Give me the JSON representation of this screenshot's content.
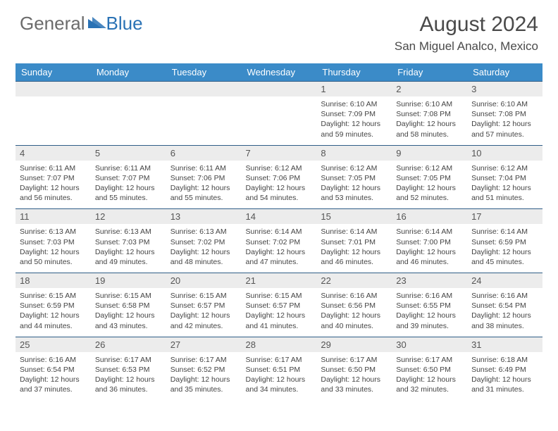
{
  "logo": {
    "part1": "General",
    "part2": "Blue"
  },
  "title": "August 2024",
  "location": "San Miguel Analco, Mexico",
  "colors": {
    "header_bg": "#3b8bc8",
    "header_text": "#ffffff",
    "daynum_bg": "#ececec",
    "row_border": "#2f5d87",
    "logo_gray": "#6b6b6b",
    "logo_blue": "#2a72b5",
    "text": "#444444"
  },
  "day_headers": [
    "Sunday",
    "Monday",
    "Tuesday",
    "Wednesday",
    "Thursday",
    "Friday",
    "Saturday"
  ],
  "weeks": [
    [
      null,
      null,
      null,
      null,
      {
        "n": "1",
        "sr": "6:10 AM",
        "ss": "7:09 PM",
        "dl": "12 hours and 59 minutes."
      },
      {
        "n": "2",
        "sr": "6:10 AM",
        "ss": "7:08 PM",
        "dl": "12 hours and 58 minutes."
      },
      {
        "n": "3",
        "sr": "6:10 AM",
        "ss": "7:08 PM",
        "dl": "12 hours and 57 minutes."
      }
    ],
    [
      {
        "n": "4",
        "sr": "6:11 AM",
        "ss": "7:07 PM",
        "dl": "12 hours and 56 minutes."
      },
      {
        "n": "5",
        "sr": "6:11 AM",
        "ss": "7:07 PM",
        "dl": "12 hours and 55 minutes."
      },
      {
        "n": "6",
        "sr": "6:11 AM",
        "ss": "7:06 PM",
        "dl": "12 hours and 55 minutes."
      },
      {
        "n": "7",
        "sr": "6:12 AM",
        "ss": "7:06 PM",
        "dl": "12 hours and 54 minutes."
      },
      {
        "n": "8",
        "sr": "6:12 AM",
        "ss": "7:05 PM",
        "dl": "12 hours and 53 minutes."
      },
      {
        "n": "9",
        "sr": "6:12 AM",
        "ss": "7:05 PM",
        "dl": "12 hours and 52 minutes."
      },
      {
        "n": "10",
        "sr": "6:12 AM",
        "ss": "7:04 PM",
        "dl": "12 hours and 51 minutes."
      }
    ],
    [
      {
        "n": "11",
        "sr": "6:13 AM",
        "ss": "7:03 PM",
        "dl": "12 hours and 50 minutes."
      },
      {
        "n": "12",
        "sr": "6:13 AM",
        "ss": "7:03 PM",
        "dl": "12 hours and 49 minutes."
      },
      {
        "n": "13",
        "sr": "6:13 AM",
        "ss": "7:02 PM",
        "dl": "12 hours and 48 minutes."
      },
      {
        "n": "14",
        "sr": "6:14 AM",
        "ss": "7:02 PM",
        "dl": "12 hours and 47 minutes."
      },
      {
        "n": "15",
        "sr": "6:14 AM",
        "ss": "7:01 PM",
        "dl": "12 hours and 46 minutes."
      },
      {
        "n": "16",
        "sr": "6:14 AM",
        "ss": "7:00 PM",
        "dl": "12 hours and 46 minutes."
      },
      {
        "n": "17",
        "sr": "6:14 AM",
        "ss": "6:59 PM",
        "dl": "12 hours and 45 minutes."
      }
    ],
    [
      {
        "n": "18",
        "sr": "6:15 AM",
        "ss": "6:59 PM",
        "dl": "12 hours and 44 minutes."
      },
      {
        "n": "19",
        "sr": "6:15 AM",
        "ss": "6:58 PM",
        "dl": "12 hours and 43 minutes."
      },
      {
        "n": "20",
        "sr": "6:15 AM",
        "ss": "6:57 PM",
        "dl": "12 hours and 42 minutes."
      },
      {
        "n": "21",
        "sr": "6:15 AM",
        "ss": "6:57 PM",
        "dl": "12 hours and 41 minutes."
      },
      {
        "n": "22",
        "sr": "6:16 AM",
        "ss": "6:56 PM",
        "dl": "12 hours and 40 minutes."
      },
      {
        "n": "23",
        "sr": "6:16 AM",
        "ss": "6:55 PM",
        "dl": "12 hours and 39 minutes."
      },
      {
        "n": "24",
        "sr": "6:16 AM",
        "ss": "6:54 PM",
        "dl": "12 hours and 38 minutes."
      }
    ],
    [
      {
        "n": "25",
        "sr": "6:16 AM",
        "ss": "6:54 PM",
        "dl": "12 hours and 37 minutes."
      },
      {
        "n": "26",
        "sr": "6:17 AM",
        "ss": "6:53 PM",
        "dl": "12 hours and 36 minutes."
      },
      {
        "n": "27",
        "sr": "6:17 AM",
        "ss": "6:52 PM",
        "dl": "12 hours and 35 minutes."
      },
      {
        "n": "28",
        "sr": "6:17 AM",
        "ss": "6:51 PM",
        "dl": "12 hours and 34 minutes."
      },
      {
        "n": "29",
        "sr": "6:17 AM",
        "ss": "6:50 PM",
        "dl": "12 hours and 33 minutes."
      },
      {
        "n": "30",
        "sr": "6:17 AM",
        "ss": "6:50 PM",
        "dl": "12 hours and 32 minutes."
      },
      {
        "n": "31",
        "sr": "6:18 AM",
        "ss": "6:49 PM",
        "dl": "12 hours and 31 minutes."
      }
    ]
  ],
  "labels": {
    "sunrise": "Sunrise:",
    "sunset": "Sunset:",
    "daylight": "Daylight:"
  }
}
